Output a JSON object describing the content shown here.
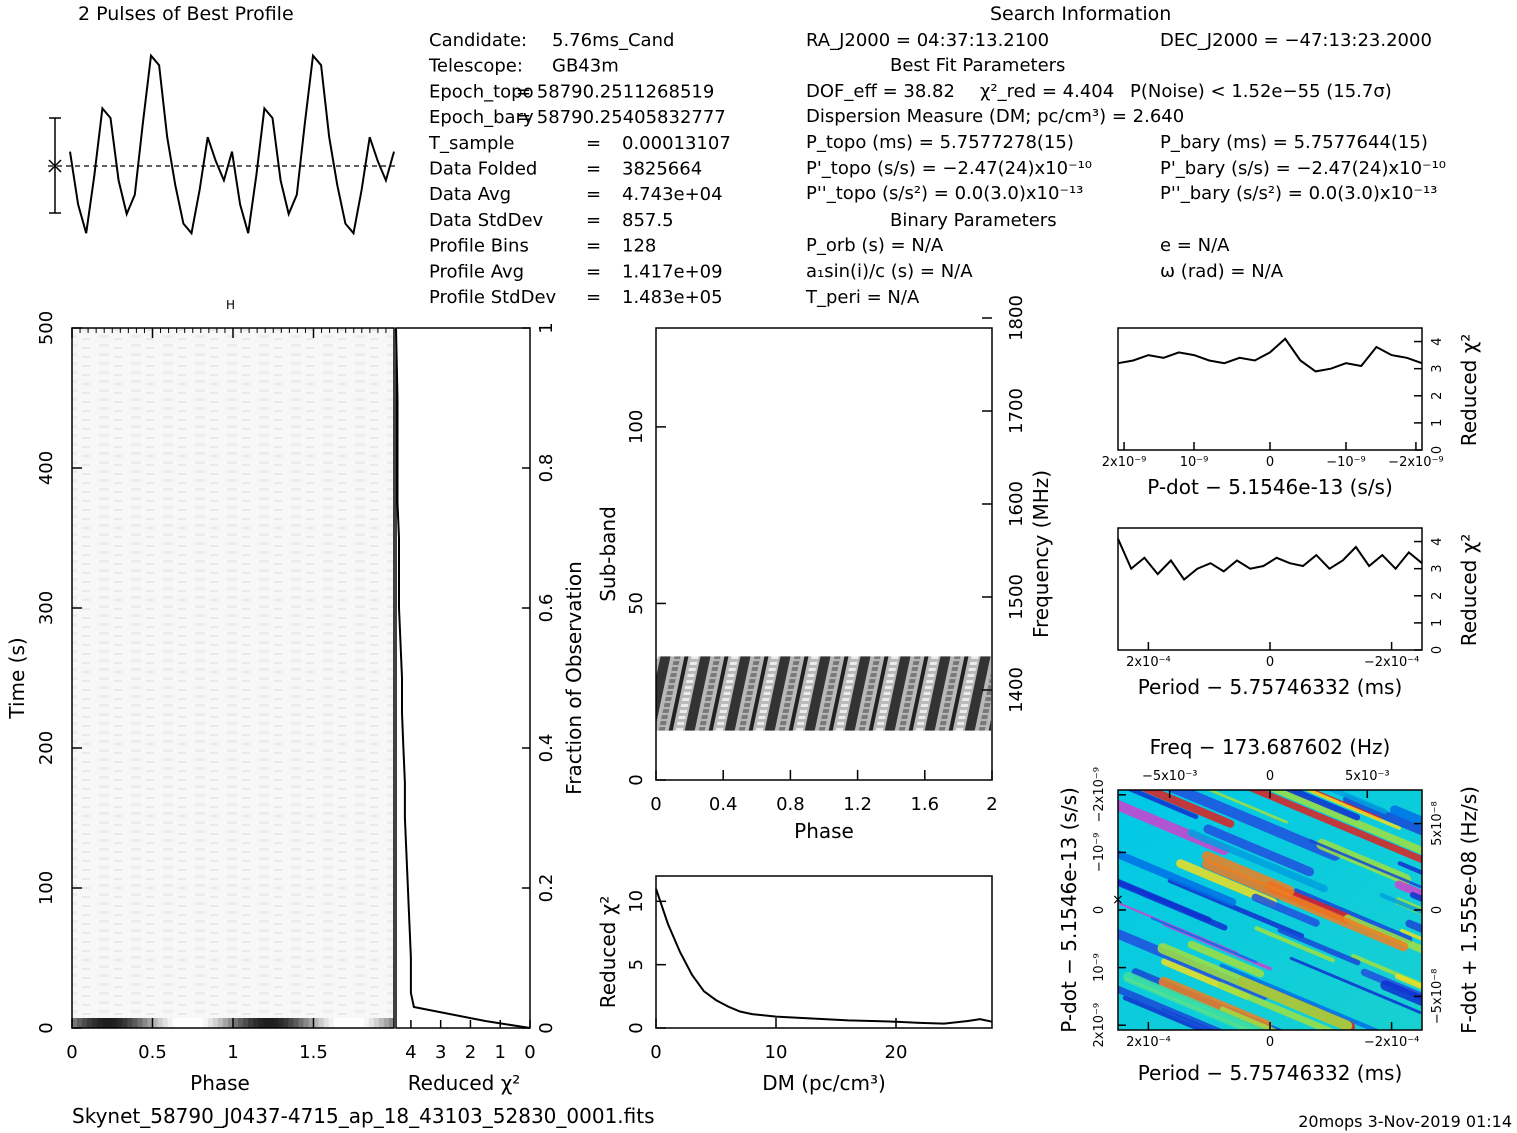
{
  "titles": {
    "profile": "2 Pulses of Best Profile",
    "search": "Search Information",
    "best_fit": "Best Fit Parameters",
    "binary": "Binary Parameters"
  },
  "info_left": [
    {
      "label": "Candidate:",
      "value": "5.76ms_Cand"
    },
    {
      "label": "Telescope:",
      "value": "GB43m"
    },
    {
      "label": "Epoch_topo",
      "value": "= 58790.2511268519"
    },
    {
      "label": "Epoch_bary",
      "value": "= 58790.25405832777"
    },
    {
      "label": "T_sample",
      "value": "0.00013107"
    },
    {
      "label": "Data Folded",
      "value": "3825664"
    },
    {
      "label": "Data Avg",
      "value": "4.743e+04"
    },
    {
      "label": "Data StdDev",
      "value": "857.5"
    },
    {
      "label": "Profile Bins",
      "value": "128"
    },
    {
      "label": "Profile Avg",
      "value": "1.417e+09"
    },
    {
      "label": "Profile StdDev",
      "value": "1.483e+05"
    }
  ],
  "info_mid": {
    "ra": "RA_J2000 = 04:37:13.2100",
    "dof": "DOF_eff = 38.82",
    "chi2": "χ²_red = 4.404",
    "pnoise": "P(Noise) < 1.52e−55  (15.7σ)",
    "dm": "Dispersion Measure (DM; pc/cm³) = 2.640",
    "ptopo": "P_topo (ms) =  5.7577278(15)",
    "pdtopo": "P'_topo (s/s) = −2.47(24)x10⁻¹⁰",
    "pddtopo": "P''_topo (s/s²) = 0.0(3.0)x10⁻¹³",
    "porb": "P_orb (s) = N/A",
    "a1": "a₁sin(i)/c (s) = N/A",
    "tperi": "T_peri = N/A"
  },
  "info_right": {
    "dec": "DEC_J2000 = −47:13:23.2000",
    "pbary": "P_bary (ms) =  5.7577644(15)",
    "pdbary": "P'_bary (s/s) = −2.47(24)x10⁻¹⁰",
    "pddbary": "P''_bary (s/s²) = 0.0(3.0)x10⁻¹³",
    "e": "e = N/A",
    "omega": "ω (rad) = N/A"
  },
  "footer": {
    "filename": "Skynet_58790_J0437-4715_ap_18_43103_52830_0001.fits",
    "stamp": "20mops  3-Nov-2019 01:14"
  },
  "axis_labels": {
    "time": "Time (s)",
    "phase": "Phase",
    "reduced_chi2": "Reduced χ²",
    "fraction": "Fraction of Observation",
    "subband": "Sub-band",
    "frequency": "Frequency (MHz)",
    "dm": "DM (pc/cm³)",
    "pdot": "P-dot − 5.1546e-13 (s/s)",
    "period": "Period − 5.75746332 (ms)",
    "freq_top": "Freq − 173.687602 (Hz)",
    "fdot": "F-dot + 1.555e-08 (Hz/s)"
  },
  "chart_data": [
    {
      "id": "profile",
      "type": "line",
      "title": "2 Pulses of Best Profile",
      "x": [
        0,
        0.05,
        0.1,
        0.15,
        0.2,
        0.25,
        0.3,
        0.35,
        0.4,
        0.45,
        0.5,
        0.55,
        0.6,
        0.65,
        0.7,
        0.75,
        0.8,
        0.85,
        0.9,
        0.95,
        1.0,
        1.05,
        1.1,
        1.15,
        1.2,
        1.25,
        1.3,
        1.35,
        1.4,
        1.45,
        1.5,
        1.55,
        1.6,
        1.65,
        1.7,
        1.75,
        1.8,
        1.85,
        1.9,
        1.95,
        2.0
      ],
      "y": [
        0.3,
        -0.8,
        -1.4,
        -0.2,
        1.2,
        1.0,
        -0.3,
        -1.0,
        -0.6,
        0.9,
        2.3,
        2.1,
        0.6,
        -0.4,
        -1.2,
        -1.4,
        -0.5,
        0.6,
        0.1,
        -0.3,
        0.3,
        -0.8,
        -1.4,
        -0.2,
        1.2,
        1.0,
        -0.3,
        -1.0,
        -0.6,
        0.9,
        2.3,
        2.1,
        0.6,
        -0.4,
        -1.2,
        -1.4,
        -0.5,
        0.6,
        0.1,
        -0.3,
        0.3
      ]
    },
    {
      "id": "time_phase",
      "type": "heatmap",
      "xlabel": "Phase",
      "ylabel": "Time (s)",
      "xlim": [
        0,
        2
      ],
      "ylim": [
        0,
        500
      ],
      "xticks": [
        "0",
        "0.5",
        "1",
        "1.5"
      ],
      "yticks": [
        "0",
        "100",
        "200",
        "300",
        "400",
        "500"
      ]
    },
    {
      "id": "time_chi2",
      "type": "line",
      "xlabel": "Reduced χ²",
      "ylabel": "Fraction of Observation",
      "xlim": [
        4.5,
        0
      ],
      "ylim": [
        0,
        1
      ],
      "xticks": [
        "4",
        "3",
        "2",
        "1",
        "0"
      ],
      "yticks": [
        "0",
        "0.2",
        "0.4",
        "0.6",
        "0.8",
        "1"
      ],
      "x": [
        0.0,
        1.5,
        3.9,
        4.0,
        4.0,
        4.05,
        4.1,
        4.15,
        4.2,
        4.2,
        4.25,
        4.3,
        4.3,
        4.35,
        4.4,
        4.4,
        4.4,
        4.45,
        4.45,
        4.45,
        4.5
      ],
      "y": [
        0.0,
        0.01,
        0.03,
        0.05,
        0.1,
        0.15,
        0.2,
        0.25,
        0.3,
        0.35,
        0.4,
        0.45,
        0.5,
        0.55,
        0.6,
        0.65,
        0.7,
        0.75,
        0.8,
        0.9,
        1.0
      ]
    },
    {
      "id": "subband_phase",
      "type": "heatmap",
      "xlabel": "Phase",
      "ylabel": "Sub-band",
      "right_label": "Frequency (MHz)",
      "xlim": [
        0,
        2
      ],
      "ylim": [
        0,
        128
      ],
      "xticks": [
        "0",
        "0.4",
        "0.8",
        "1.2",
        "1.6",
        "2"
      ],
      "yticks": [
        "0",
        "50",
        "100"
      ],
      "right_ticks": [
        "1400",
        "1500",
        "1600",
        "1700",
        "1800"
      ],
      "occupied_subbands": [
        14,
        35
      ]
    },
    {
      "id": "dm_chi2",
      "type": "line",
      "xlabel": "DM (pc/cm³)",
      "ylabel": "Reduced χ²",
      "xlim": [
        0,
        28
      ],
      "ylim": [
        0,
        12
      ],
      "xticks": [
        "0",
        "10",
        "20"
      ],
      "yticks": [
        "0",
        "5",
        "10"
      ],
      "x": [
        0,
        1,
        2,
        3,
        4,
        5,
        6,
        7,
        8,
        10,
        12,
        14,
        16,
        18,
        20,
        22,
        24,
        26,
        27,
        28
      ],
      "y": [
        11,
        8.2,
        6,
        4.2,
        2.9,
        2.2,
        1.7,
        1.3,
        1.1,
        0.9,
        0.8,
        0.7,
        0.6,
        0.55,
        0.5,
        0.4,
        0.35,
        0.55,
        0.7,
        0.5
      ]
    },
    {
      "id": "pdot_chi2",
      "type": "line",
      "xlabel": "P-dot − 5.1546e-13 (s/s)",
      "ylabel": "Reduced χ²",
      "xticks": [
        "2x10⁻⁹",
        "10⁻⁹",
        "0",
        "−10⁻⁹",
        "−2x10⁻⁹"
      ],
      "yticks": [
        "0",
        "1",
        "2",
        "3",
        "4"
      ],
      "ylim": [
        0,
        4.5
      ],
      "x": [
        2,
        1.8,
        1.6,
        1.4,
        1.2,
        1.0,
        0.8,
        0.6,
        0.4,
        0.2,
        0,
        -0.2,
        -0.4,
        -0.6,
        -0.8,
        -1.0,
        -1.2,
        -1.4,
        -1.6,
        -1.8,
        -2
      ],
      "y": [
        3.2,
        3.3,
        3.5,
        3.4,
        3.6,
        3.5,
        3.3,
        3.2,
        3.4,
        3.3,
        3.6,
        4.1,
        3.3,
        2.9,
        3.0,
        3.2,
        3.1,
        3.8,
        3.5,
        3.4,
        3.2
      ]
    },
    {
      "id": "period_chi2",
      "type": "line",
      "xlabel": "Period − 5.75746332 (ms)",
      "ylabel": "Reduced χ²",
      "xticks": [
        "2x10⁻⁴",
        "0",
        "−2x10⁻⁴"
      ],
      "yticks": [
        "0",
        "1",
        "2",
        "3",
        "4"
      ],
      "ylim": [
        0,
        4.5
      ],
      "x": [
        2.3,
        2.1,
        1.9,
        1.7,
        1.5,
        1.3,
        1.1,
        0.9,
        0.7,
        0.5,
        0.3,
        0.1,
        -0.1,
        -0.3,
        -0.5,
        -0.7,
        -0.9,
        -1.1,
        -1.3,
        -1.5,
        -1.7,
        -1.9,
        -2.1,
        -2.3
      ],
      "y": [
        4.1,
        3.0,
        3.4,
        2.8,
        3.3,
        2.6,
        3.0,
        3.2,
        2.9,
        3.3,
        3.0,
        3.1,
        3.4,
        3.2,
        3.1,
        3.5,
        3.0,
        3.3,
        3.8,
        3.1,
        3.5,
        3.0,
        3.6,
        3.2
      ]
    },
    {
      "id": "pp_dot_plane",
      "type": "heatmap",
      "xlabel": "Period − 5.75746332 (ms)",
      "ylabel": "P-dot − 5.1546e-13 (s/s)",
      "top_label": "Freq − 173.687602 (Hz)",
      "right_label": "F-dot + 1.555e-08 (Hz/s)",
      "xticks": [
        "2x10⁻⁴",
        "0",
        "−2x10⁻⁴"
      ],
      "yticks": [
        "2x10⁻⁹",
        "10⁻⁹",
        "0",
        "−10⁻⁹",
        "−2x10⁻⁹"
      ],
      "top_ticks": [
        "−5x10⁻³",
        "0",
        "5x10⁻³"
      ],
      "right_ticks": [
        "−5x10⁻⁸",
        "0",
        "5x10⁻⁸"
      ]
    }
  ]
}
